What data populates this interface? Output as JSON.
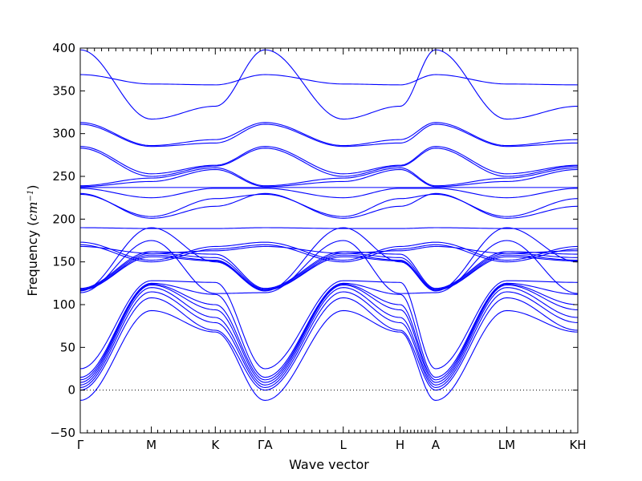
{
  "chart_data": {
    "type": "line",
    "xlabel": "Wave vector",
    "ylabel_main": "Frequency (",
    "ylabel_unit_base": "cm",
    "ylabel_unit_exp": "−1",
    "ylabel_close": ")",
    "ylim": [
      -50,
      400
    ],
    "yticks": [
      -50,
      0,
      50,
      100,
      150,
      200,
      250,
      300,
      350,
      400
    ],
    "grid": false,
    "zero_line": true,
    "line_color": "#0000ff",
    "segment_ends": [
      0,
      1,
      1.9,
      2.6,
      3.7,
      4.5,
      5.0,
      6.0,
      7.0
    ],
    "xtick_labels": [
      {
        "x": 0,
        "label": "Γ"
      },
      {
        "x": 1,
        "label": "M"
      },
      {
        "x": 1.9,
        "label": "K"
      },
      {
        "x": 2.6,
        "label": "ΓA"
      },
      {
        "x": 3.7,
        "label": "L"
      },
      {
        "x": 4.5,
        "label": "H"
      },
      {
        "x": 5.0,
        "label": "A"
      },
      {
        "x": 6.0,
        "label": "LM"
      },
      {
        "x": 7.0,
        "label": "KH"
      }
    ],
    "minor_ticks_per_segment": 10,
    "series": [
      {
        "values": [
          -12,
          93,
          68,
          -12,
          93,
          68,
          -12,
          93,
          68
        ]
      },
      {
        "values": [
          0,
          108,
          70,
          0,
          108,
          70,
          0,
          108,
          70
        ]
      },
      {
        "values": [
          3,
          115,
          79,
          3,
          115,
          79,
          3,
          115,
          79
        ]
      },
      {
        "values": [
          6,
          120,
          85,
          6,
          120,
          85,
          6,
          120,
          85
        ]
      },
      {
        "values": [
          9,
          123,
          94,
          9,
          123,
          94,
          9,
          123,
          94
        ]
      },
      {
        "values": [
          12,
          124,
          100,
          12,
          124,
          100,
          12,
          124,
          100
        ]
      },
      {
        "values": [
          15,
          125,
          112,
          15,
          125,
          112,
          15,
          125,
          112
        ]
      },
      {
        "values": [
          25,
          128,
          126,
          25,
          128,
          126,
          25,
          128,
          126
        ]
      },
      {
        "values": [
          114,
          175,
          113,
          114,
          175,
          113,
          114,
          175,
          113
        ]
      },
      {
        "values": [
          116,
          190,
          150,
          116,
          190,
          150,
          116,
          190,
          150
        ]
      },
      {
        "values": [
          117,
          156,
          151,
          117,
          156,
          151,
          117,
          156,
          151
        ]
      },
      {
        "values": [
          117,
          158,
          152,
          117,
          158,
          152,
          117,
          158,
          152
        ]
      },
      {
        "values": [
          118,
          160,
          155,
          118,
          160,
          155,
          118,
          160,
          155
        ]
      },
      {
        "values": [
          119,
          162,
          159,
          119,
          162,
          159,
          119,
          162,
          159
        ]
      },
      {
        "values": [
          168,
          160,
          163,
          168,
          160,
          163,
          168,
          160,
          163
        ]
      },
      {
        "values": [
          170,
          150,
          165,
          170,
          150,
          165,
          170,
          150,
          165
        ]
      },
      {
        "values": [
          173,
          152,
          168,
          173,
          152,
          168,
          173,
          152,
          168
        ]
      },
      {
        "values": [
          190,
          189,
          189,
          190,
          189,
          189,
          190,
          189,
          189
        ]
      },
      {
        "values": [
          230,
          201,
          215,
          230,
          201,
          215,
          230,
          201,
          215
        ]
      },
      {
        "values": [
          229,
          203,
          224,
          229,
          203,
          224,
          229,
          203,
          224
        ]
      },
      {
        "values": [
          236,
          225,
          236,
          236,
          225,
          236,
          236,
          225,
          236
        ]
      },
      {
        "values": [
          237,
          237,
          237,
          237,
          237,
          237,
          237,
          237,
          237
        ]
      },
      {
        "values": [
          238,
          244,
          258,
          238,
          244,
          258,
          238,
          244,
          258
        ]
      },
      {
        "values": [
          239,
          248,
          260,
          239,
          248,
          260,
          239,
          248,
          260
        ]
      },
      {
        "values": [
          283,
          250,
          262,
          283,
          250,
          262,
          283,
          250,
          262
        ]
      },
      {
        "values": [
          285,
          253,
          263,
          285,
          253,
          263,
          285,
          253,
          263
        ]
      },
      {
        "values": [
          311,
          285,
          289,
          311,
          285,
          289,
          311,
          285,
          289
        ]
      },
      {
        "values": [
          313,
          286,
          293,
          313,
          286,
          293,
          313,
          286,
          293
        ]
      },
      {
        "values": [
          369,
          358,
          357,
          369,
          358,
          357,
          369,
          358,
          357
        ]
      },
      {
        "values": [
          398,
          317,
          332,
          398,
          317,
          332,
          398,
          317,
          332
        ]
      }
    ]
  }
}
